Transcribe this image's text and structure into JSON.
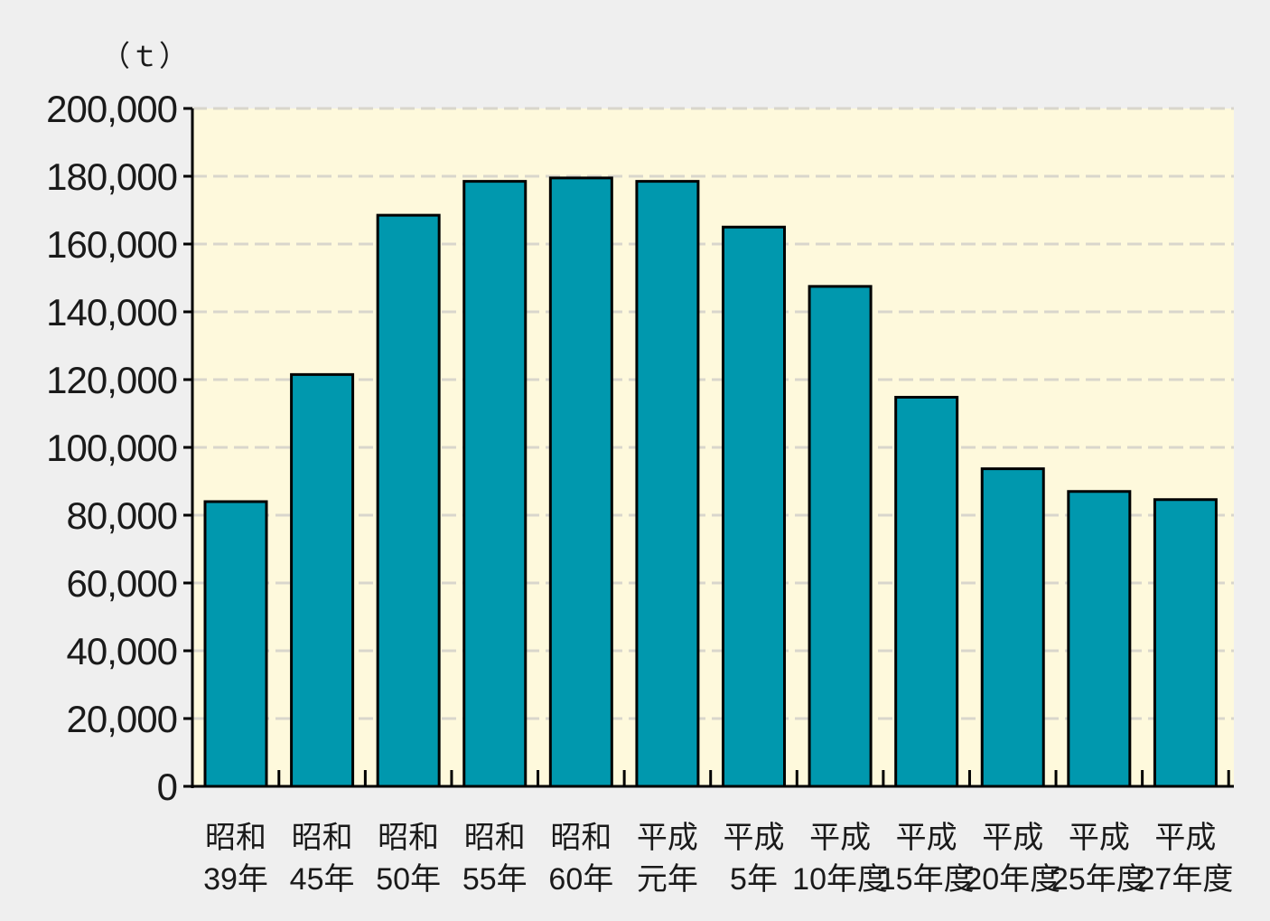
{
  "chart_data": {
    "type": "bar",
    "unit": "（ｔ）",
    "categories": [
      [
        "昭和",
        "39年"
      ],
      [
        "昭和",
        "45年"
      ],
      [
        "昭和",
        "50年"
      ],
      [
        "昭和",
        "55年"
      ],
      [
        "昭和",
        "60年"
      ],
      [
        "平成",
        "元年"
      ],
      [
        "平成",
        "5年"
      ],
      [
        "平成",
        "10年度"
      ],
      [
        "平成",
        "15年度"
      ],
      [
        "平成",
        "20年度"
      ],
      [
        "平成",
        "25年度"
      ],
      [
        "平成",
        "27年度"
      ]
    ],
    "values": [
      84000,
      121500,
      168500,
      178500,
      179500,
      178500,
      165000,
      147500,
      114800,
      93700,
      87000,
      84600
    ],
    "ylim": [
      0,
      200000
    ],
    "yticks": [
      0,
      20000,
      40000,
      60000,
      80000,
      100000,
      120000,
      140000,
      160000,
      180000,
      200000
    ],
    "ytick_labels": [
      "0",
      "20,000",
      "40,000",
      "60,000",
      "80,000",
      "100,000",
      "120,000",
      "140,000",
      "160,000",
      "180,000",
      "200,000"
    ],
    "grid": true,
    "colors": {
      "bar_fill": "#0098ae",
      "bar_stroke": "#000000",
      "plot_background": "#fef9dc",
      "grid_line": "#d9d6cc",
      "page_background": "#efefef"
    }
  }
}
